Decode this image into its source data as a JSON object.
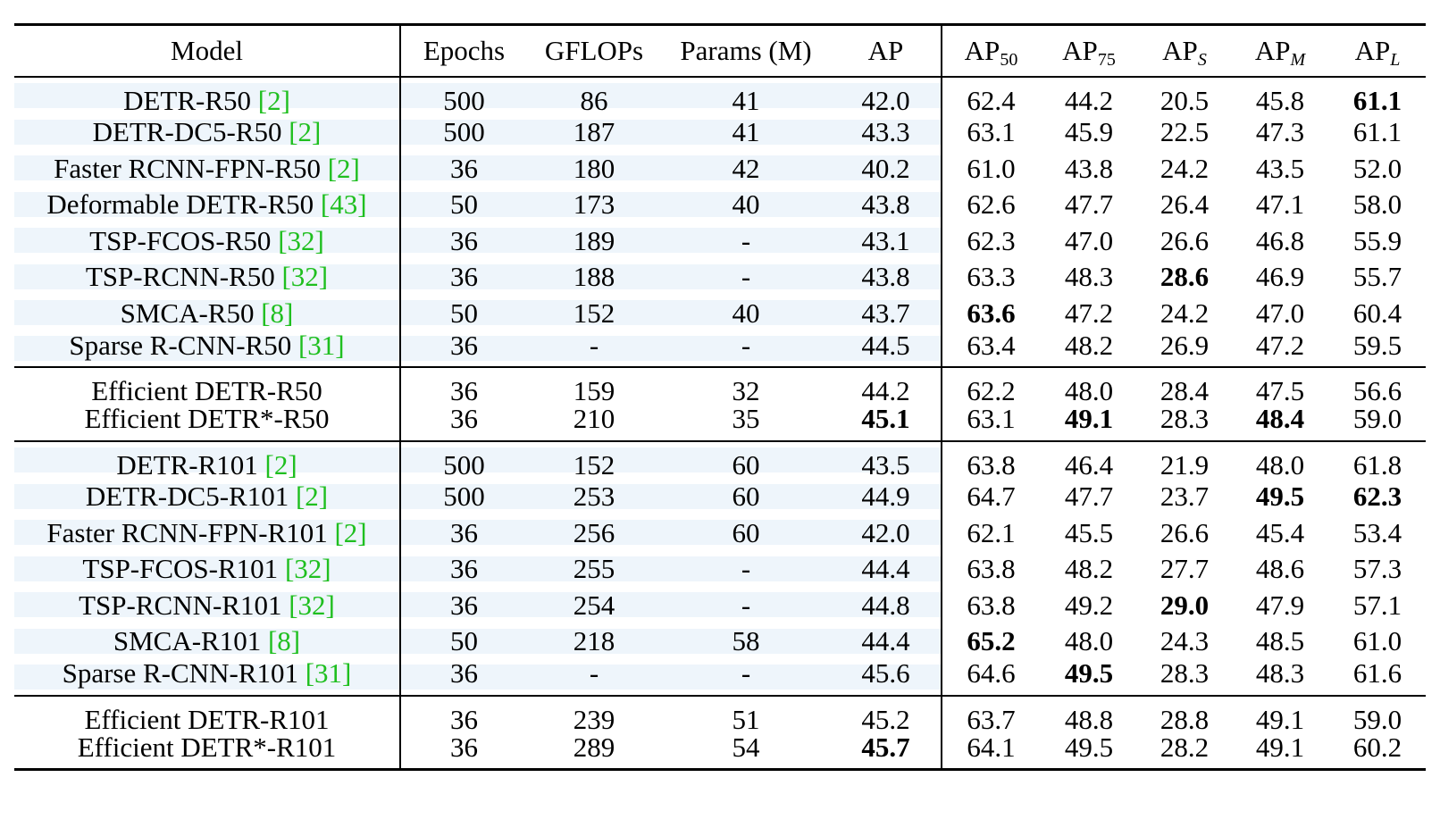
{
  "table": {
    "headers": {
      "model": "Model",
      "epochs": "Epochs",
      "gflops": "GFLOPs",
      "params": "Params (M)",
      "ap": "AP",
      "ap50_base": "AP",
      "ap50_sub": "50",
      "ap75_base": "AP",
      "ap75_sub": "75",
      "aps_base": "AP",
      "aps_sub": "S",
      "apm_base": "AP",
      "apm_sub": "M",
      "apl_base": "AP",
      "apl_sub": "L"
    },
    "groups": [
      {
        "rows": [
          {
            "model": "DETR-R50 ",
            "cite": "[2]",
            "epochs": "500",
            "gflops": "86",
            "params": "41",
            "ap": "42.0",
            "ap50": "62.4",
            "ap75": "44.2",
            "aps": "20.5",
            "apm": "45.8",
            "apl": "61.1"
          },
          {
            "model": "DETR-DC5-R50 ",
            "cite": "[2]",
            "epochs": "500",
            "gflops": "187",
            "params": "41",
            "ap": "43.3",
            "ap50": "63.1",
            "ap75": "45.9",
            "aps": "22.5",
            "apm": "47.3",
            "apl": "61.1"
          },
          {
            "model": "Faster RCNN-FPN-R50 ",
            "cite": "[2]",
            "epochs": "36",
            "gflops": "180",
            "params": "42",
            "ap": "40.2",
            "ap50": "61.0",
            "ap75": "43.8",
            "aps": "24.2",
            "apm": "43.5",
            "apl": "52.0"
          },
          {
            "model": "Deformable DETR-R50 ",
            "cite": "[43]",
            "epochs": "50",
            "gflops": "173",
            "params": "40",
            "ap": "43.8",
            "ap50": "62.6",
            "ap75": "47.7",
            "aps": "26.4",
            "apm": "47.1",
            "apl": "58.0"
          },
          {
            "model": "TSP-FCOS-R50  ",
            "cite": "[32]",
            "epochs": "36",
            "gflops": "189",
            "params": "-",
            "ap": "43.1",
            "ap50": "62.3",
            "ap75": "47.0",
            "aps": "26.6",
            "apm": "46.8",
            "apl": "55.9"
          },
          {
            "model": "TSP-RCNN-R50 ",
            "cite": "[32]",
            "epochs": "36",
            "gflops": "188",
            "params": "-",
            "ap": "43.8",
            "ap50": "63.3",
            "ap75": "48.3",
            "aps": "28.6",
            "apm": "46.9",
            "apl": "55.7"
          },
          {
            "model": "SMCA-R50 ",
            "cite": "[8]",
            "epochs": "50",
            "gflops": "152",
            "params": "40",
            "ap": "43.7",
            "ap50": "63.6",
            "ap75": "47.2",
            "aps": "24.2",
            "apm": "47.0",
            "apl": "60.4"
          },
          {
            "model": "Sparse R-CNN-R50 ",
            "cite": "[31]",
            "epochs": "36",
            "gflops": "-",
            "params": "-",
            "ap": "44.5",
            "ap50": "63.4",
            "ap75": "48.2",
            "aps": "26.9",
            "apm": "47.2",
            "apl": "59.5"
          }
        ]
      },
      {
        "rows": [
          {
            "model": "Efficient DETR-R50",
            "cite": "",
            "epochs": "36",
            "gflops": "159",
            "params": "32",
            "ap": "44.2",
            "ap50": "62.2",
            "ap75": "48.0",
            "aps": "28.4",
            "apm": "47.5",
            "apl": "56.6"
          },
          {
            "model": "Efficient DETR*-R50",
            "cite": "",
            "epochs": "36",
            "gflops": "210",
            "params": "35",
            "ap": "45.1",
            "ap50": "63.1",
            "ap75": "49.1",
            "aps": "28.3",
            "apm": "48.4",
            "apl": "59.0"
          }
        ]
      },
      {
        "rows": [
          {
            "model": "DETR-R101 ",
            "cite": "[2]",
            "epochs": "500",
            "gflops": "152",
            "params": "60",
            "ap": "43.5",
            "ap50": "63.8",
            "ap75": "46.4",
            "aps": "21.9",
            "apm": "48.0",
            "apl": "61.8"
          },
          {
            "model": "DETR-DC5-R101 ",
            "cite": "[2]",
            "epochs": "500",
            "gflops": "253",
            "params": "60",
            "ap": "44.9",
            "ap50": "64.7",
            "ap75": "47.7",
            "aps": "23.7",
            "apm": "49.5",
            "apl": "62.3"
          },
          {
            "model": "Faster RCNN-FPN-R101 ",
            "cite": "[2]",
            "epochs": "36",
            "gflops": "256",
            "params": "60",
            "ap": "42.0",
            "ap50": "62.1",
            "ap75": "45.5",
            "aps": "26.6",
            "apm": "45.4",
            "apl": "53.4"
          },
          {
            "model": "TSP-FCOS-R101 ",
            "cite": "[32]",
            "epochs": "36",
            "gflops": "255",
            "params": "-",
            "ap": "44.4",
            "ap50": "63.8",
            "ap75": "48.2",
            "aps": "27.7",
            "apm": "48.6",
            "apl": "57.3"
          },
          {
            "model": "TSP-RCNN-R101 ",
            "cite": "[32]",
            "epochs": "36",
            "gflops": "254",
            "params": "-",
            "ap": "44.8",
            "ap50": "63.8",
            "ap75": "49.2",
            "aps": "29.0",
            "apm": "47.9",
            "apl": "57.1"
          },
          {
            "model": "SMCA-R101 ",
            "cite": "[8]",
            "epochs": "50",
            "gflops": "218",
            "params": "58",
            "ap": "44.4",
            "ap50": "65.2",
            "ap75": "48.0",
            "aps": "24.3",
            "apm": "48.5",
            "apl": "61.0"
          },
          {
            "model": "Sparse R-CNN-R101 ",
            "cite": "[31]",
            "epochs": "36",
            "gflops": "-",
            "params": "-",
            "ap": "45.6",
            "ap50": "64.6",
            "ap75": "49.5",
            "aps": "28.3",
            "apm": "48.3",
            "apl": "61.6"
          }
        ]
      },
      {
        "rows": [
          {
            "model": "Efficient DETR-R101",
            "cite": "",
            "epochs": "36",
            "gflops": "239",
            "params": "51",
            "ap": "45.2",
            "ap50": "63.7",
            "ap75": "48.8",
            "aps": "28.8",
            "apm": "49.1",
            "apl": "59.0"
          },
          {
            "model": "Efficient DETR*-R101",
            "cite": "",
            "epochs": "36",
            "gflops": "289",
            "params": "54",
            "ap": "45.7",
            "ap50": "64.1",
            "ap75": "49.5",
            "aps": "28.2",
            "apm": "49.1",
            "apl": "60.2"
          }
        ]
      }
    ],
    "bold_cells": [
      "0.0.apl",
      "0.5.aps",
      "0.6.ap50",
      "1.1.ap",
      "1.1.ap75",
      "1.1.apm",
      "2.1.apm",
      "2.1.apl",
      "2.4.aps",
      "2.5.ap50",
      "2.6.ap75",
      "3.1.ap"
    ],
    "shaded_groups": [
      0,
      2
    ]
  }
}
